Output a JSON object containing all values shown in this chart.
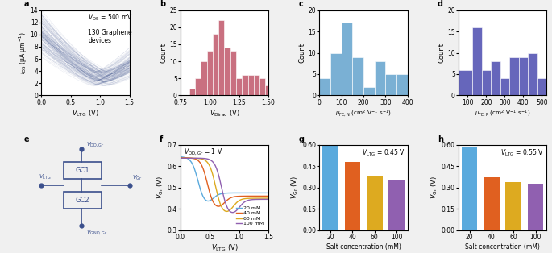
{
  "panel_a": {
    "xlabel": "$V_{\\mathrm{LTG}}$ (V)",
    "ylabel": "$I_{\\mathrm{DS}}$ (μA μm$^{-1}$)",
    "label": "a",
    "annotation1": "$V_{\\mathrm{DS}}$ = 500 mV",
    "annotation2": "130 Graphene\ndevices",
    "color": "#3a4f8c",
    "xlim": [
      0,
      1.5
    ],
    "ylim": [
      0,
      14
    ],
    "yticks": [
      0,
      2,
      4,
      6,
      8,
      10,
      12,
      14
    ],
    "xticks": [
      0,
      0.5,
      1.0,
      1.5
    ]
  },
  "panel_b": {
    "xlabel": "$V_{\\mathrm{Dirac}}$ (V)",
    "ylabel": "Count",
    "label": "b",
    "color": "#c97080",
    "xlim": [
      0.75,
      1.5
    ],
    "ylim": [
      0,
      25
    ],
    "yticks": [
      0,
      5,
      10,
      15,
      20,
      25
    ],
    "bin_edges": [
      0.75,
      0.825,
      0.875,
      0.925,
      0.975,
      1.025,
      1.075,
      1.125,
      1.175,
      1.225,
      1.275,
      1.325,
      1.375,
      1.425,
      1.475,
      1.5
    ],
    "counts": [
      0,
      2,
      5,
      10,
      13,
      18,
      22,
      14,
      13,
      5,
      6,
      6,
      6,
      5,
      3
    ]
  },
  "panel_c": {
    "xlabel": "$\\mu_{\\mathrm{FE,N}}$ (cm$^2$ V$^{-1}$ s$^{-1}$)",
    "ylabel": "Count",
    "label": "c",
    "color": "#7ab0d4",
    "xlim": [
      0,
      400
    ],
    "ylim": [
      0,
      20
    ],
    "yticks": [
      0,
      5,
      10,
      15,
      20
    ],
    "bin_edges": [
      0,
      50,
      100,
      150,
      200,
      250,
      300,
      350,
      400
    ],
    "counts": [
      4,
      10,
      17,
      9,
      2,
      8,
      5,
      5
    ]
  },
  "panel_d": {
    "xlabel": "$\\mu_{\\mathrm{FE,P}}$ (cm$^2$ V$^{-1}$ s$^{-1}$)",
    "ylabel": "Count",
    "label": "d",
    "color": "#6666bb",
    "xlim": [
      50,
      525
    ],
    "ylim": [
      0,
      20
    ],
    "yticks": [
      0,
      5,
      10,
      15,
      20
    ],
    "bin_edges": [
      50,
      125,
      175,
      225,
      275,
      325,
      375,
      425,
      475,
      525
    ],
    "counts": [
      6,
      16,
      6,
      8,
      4,
      9,
      9,
      10,
      4
    ]
  },
  "panel_f": {
    "xlabel": "$V_{\\mathrm{LTG}}$ (V)",
    "ylabel": "$V_{\\mathrm{Gr}}$ (V)",
    "label": "f",
    "annotation": "$V_{\\mathrm{DD,Gr}}$ = 1 V",
    "xlim": [
      0,
      1.5
    ],
    "ylim": [
      0.3,
      0.7
    ],
    "yticks": [
      0.3,
      0.4,
      0.5,
      0.6,
      0.7
    ],
    "xticks": [
      0,
      0.5,
      1.0,
      1.5
    ],
    "concentrations": [
      "20 mM",
      "40 mM",
      "60 mM",
      "100 mM"
    ],
    "colors": [
      "#5aaadd",
      "#e06020",
      "#ddaa20",
      "#9060b0"
    ]
  },
  "panel_g": {
    "xlabel": "Salt concentration (mM)",
    "ylabel": "$V_{\\mathrm{Gr}}$ (V)",
    "label": "g",
    "annotation": "$V_{\\mathrm{LTG}}$ = 0.45 V",
    "xlim_cats": [
      "20",
      "40",
      "60",
      "100"
    ],
    "values": [
      0.63,
      0.48,
      0.38,
      0.35
    ],
    "colors": [
      "#5aaadd",
      "#e06020",
      "#ddaa20",
      "#9060b0"
    ],
    "ylim": [
      0,
      0.6
    ],
    "yticks": [
      0,
      0.15,
      0.3,
      0.45,
      0.6
    ]
  },
  "panel_h": {
    "xlabel": "Salt concentration (mM)",
    "ylabel": "$V_{\\mathrm{Gr}}$ (V)",
    "label": "h",
    "annotation": "$V_{\\mathrm{LTG}}$ = 0.55 V",
    "xlim_cats": [
      "20",
      "40",
      "60",
      "100"
    ],
    "values": [
      0.59,
      0.37,
      0.34,
      0.33
    ],
    "colors": [
      "#5aaadd",
      "#e06020",
      "#ddaa20",
      "#9060b0"
    ],
    "ylim": [
      0,
      0.6
    ],
    "yticks": [
      0,
      0.15,
      0.3,
      0.45,
      0.6
    ]
  },
  "panel_e": {
    "label": "e",
    "color": "#3a4f8c"
  },
  "fig_bg": "#f0f0f0",
  "axes_bg": "#ffffff"
}
